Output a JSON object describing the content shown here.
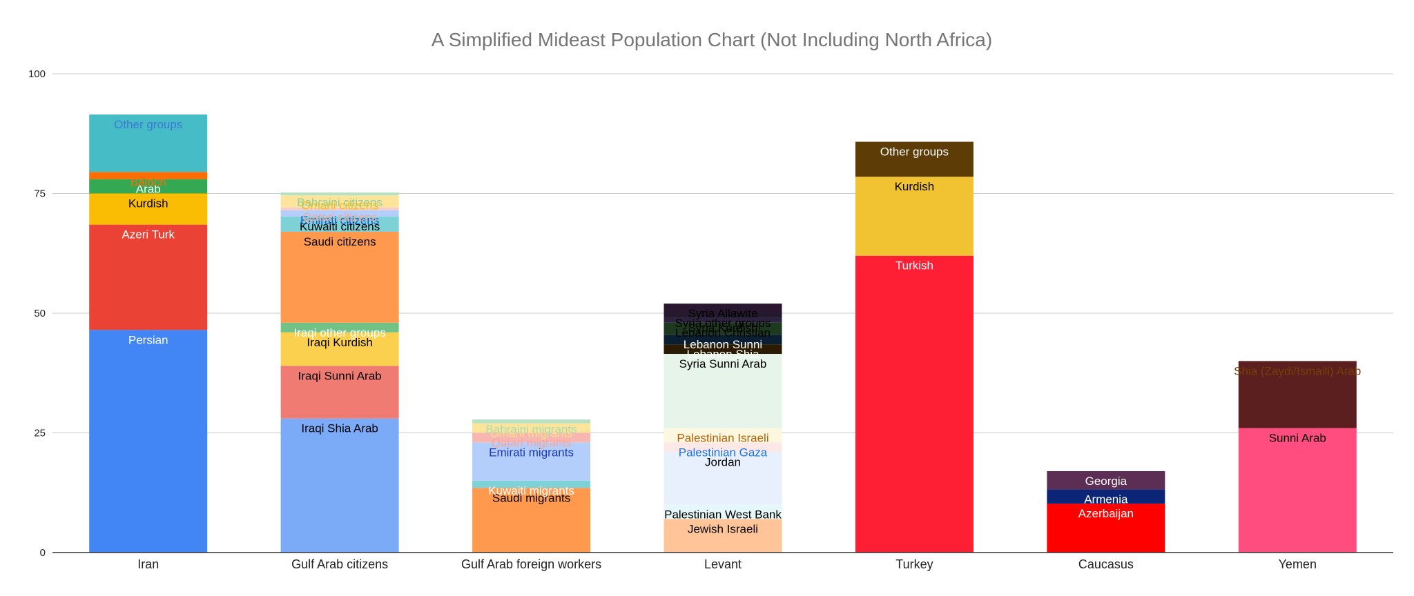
{
  "chart_data": {
    "type": "bar",
    "stacked": true,
    "title": "A Simplified Mideast Population Chart (Not Including North Africa)",
    "xlabel": "",
    "ylabel": "",
    "ylim": [
      0,
      100
    ],
    "yticks": [
      "0",
      "25",
      "50",
      "75",
      "100"
    ],
    "grid": true,
    "legend": "none",
    "categories": [
      "Iran",
      "Gulf Arab citizens",
      "Gulf Arab foreign workers",
      "Levant",
      "Turkey",
      "Caucasus",
      "Yemen"
    ],
    "bars": [
      {
        "category": "Iran",
        "segments": [
          {
            "name": "Persian",
            "value": 46.5,
            "color": "#4285f4",
            "label_color": "#ffffff"
          },
          {
            "name": "Azeri Turk",
            "value": 22,
            "color": "#ea4335",
            "label_color": "#ffffff"
          },
          {
            "name": "Kurdish",
            "value": 6.5,
            "color": "#fbbc04",
            "label_color": "#000000"
          },
          {
            "name": "Arab",
            "value": 3,
            "color": "#34a853",
            "label_color": "#ffffff"
          },
          {
            "name": "Baloch",
            "value": 1.5,
            "color": "#ff6d01",
            "label_color": "#ff6d01"
          },
          {
            "name": "Other groups",
            "value": 12,
            "color": "#46bdc6",
            "label_color": "#3c78d8"
          }
        ]
      },
      {
        "category": "Gulf Arab citizens",
        "segments": [
          {
            "name": "Iraqi Shia Arab",
            "value": 28,
            "color": "#7baaf7",
            "label_color": "#000000"
          },
          {
            "name": "Iraqi Sunni Arab",
            "value": 11,
            "color": "#f07b72",
            "label_color": "#000000"
          },
          {
            "name": "Iraqi Kurdish",
            "value": 7,
            "color": "#fcd04f",
            "label_color": "#000000"
          },
          {
            "name": "Iraqi other groups",
            "value": 2,
            "color": "#71c287",
            "label_color": "#ffffff"
          },
          {
            "name": "Saudi citizens",
            "value": 19,
            "color": "#ff994d",
            "label_color": "#000000"
          },
          {
            "name": "Kuwaiti citizens",
            "value": 3.2,
            "color": "#7ed1d7",
            "label_color": "#000000"
          },
          {
            "name": "Emirati citizens",
            "value": 1.3,
            "color": "#b3cefb",
            "label_color": "#1155cc"
          },
          {
            "name": "Qatari citizens",
            "value": 0.6,
            "color": "#f7cbc7",
            "label_color": "#f4a7a0"
          },
          {
            "name": "Omani citizens",
            "value": 2.5,
            "color": "#fde49b",
            "label_color": "#fbbc04"
          },
          {
            "name": "Bahraini citizens",
            "value": 0.6,
            "color": "#b7e1c1",
            "label_color": "#93cf9f"
          }
        ]
      },
      {
        "category": "Gulf Arab foreign workers",
        "segments": [
          {
            "name": "Saudi migrants",
            "value": 13.5,
            "color": "#ff994d",
            "label_color": "#000000"
          },
          {
            "name": "Kuwaiti migrants",
            "value": 1.5,
            "color": "#7ed1d7",
            "label_color": "#ffffff"
          },
          {
            "name": "Emirati migrants",
            "value": 8,
            "color": "#b3cefb",
            "label_color": "#1c39bb"
          },
          {
            "name": "Qatari migrants",
            "value": 2,
            "color": "#f7b6b0",
            "label_color": "#f4a7a0"
          },
          {
            "name": "Omani migrants",
            "value": 2,
            "color": "#fde49b",
            "label_color": "#fce08a"
          },
          {
            "name": "Bahraini migrants",
            "value": 0.8,
            "color": "#b7e1c1",
            "label_color": "#a8dab5"
          }
        ]
      },
      {
        "category": "Levant",
        "segments": [
          {
            "name": "Jewish Israeli",
            "value": 7,
            "color": "#ffc599",
            "label_color": "#000000"
          },
          {
            "name": "Palestinian West Bank",
            "value": 3,
            "color": "#e5f7f8",
            "label_color": "#000000"
          },
          {
            "name": "Jordan",
            "value": 11,
            "color": "#e8f0fe",
            "label_color": "#000000"
          },
          {
            "name": "Palestinian Gaza",
            "value": 2,
            "color": "#fce8e6",
            "label_color": "#1a73e8"
          },
          {
            "name": "Palestinian Israeli",
            "value": 3,
            "color": "#fef7e0",
            "label_color": "#b45f06"
          },
          {
            "name": "Syria Sunni Arab",
            "value": 15.5,
            "color": "#e6f4ea",
            "label_color": "#000000"
          },
          {
            "name": "Lebanon Shia",
            "value": 2,
            "color": "#2b1b02",
            "label_color": "#ffffff"
          },
          {
            "name": "Lebanon Sunni",
            "value": 2,
            "color": "#0b1f33",
            "label_color": "#ffffff"
          },
          {
            "name": "Lebanon Christian",
            "value": 2.5,
            "color": "#1d3a20",
            "label_color": "#000000"
          },
          {
            "name": "Syria Kurdish",
            "value": 1,
            "color": "#2d2340",
            "label_color": "#000000"
          },
          {
            "name": "Syria other groups",
            "value": 1,
            "color": "#241a2e",
            "label_color": "#000000"
          },
          {
            "name": "Syria Allawite",
            "value": 2,
            "color": "#2a1730",
            "label_color": "#000000"
          }
        ]
      },
      {
        "category": "Turkey",
        "segments": [
          {
            "name": "Turkish",
            "value": 62,
            "color": "#ff1f35",
            "label_color": "#ffffff"
          },
          {
            "name": "Kurdish",
            "value": 16.5,
            "color": "#f1c232",
            "label_color": "#000000"
          },
          {
            "name": "Other groups",
            "value": 7.3,
            "color": "#5e3c06",
            "label_color": "#ffffff"
          }
        ]
      },
      {
        "category": "Caucasus",
        "segments": [
          {
            "name": "Azerbaijan",
            "value": 10.2,
            "color": "#ff0000",
            "label_color": "#ffffff"
          },
          {
            "name": "Armenia",
            "value": 3,
            "color": "#0c2577",
            "label_color": "#ffffff"
          },
          {
            "name": "Georgia",
            "value": 3.8,
            "color": "#5d2e55",
            "label_color": "#ffffff"
          }
        ]
      },
      {
        "category": "Yemen",
        "segments": [
          {
            "name": "Sunni Arab",
            "value": 26,
            "color": "#ff4d80",
            "label_color": "#000000"
          },
          {
            "name": "Shia (Zaydi/Ismaili) Arab",
            "value": 14,
            "color": "#5b1f1f",
            "label_color": "#783f04"
          }
        ]
      }
    ]
  }
}
